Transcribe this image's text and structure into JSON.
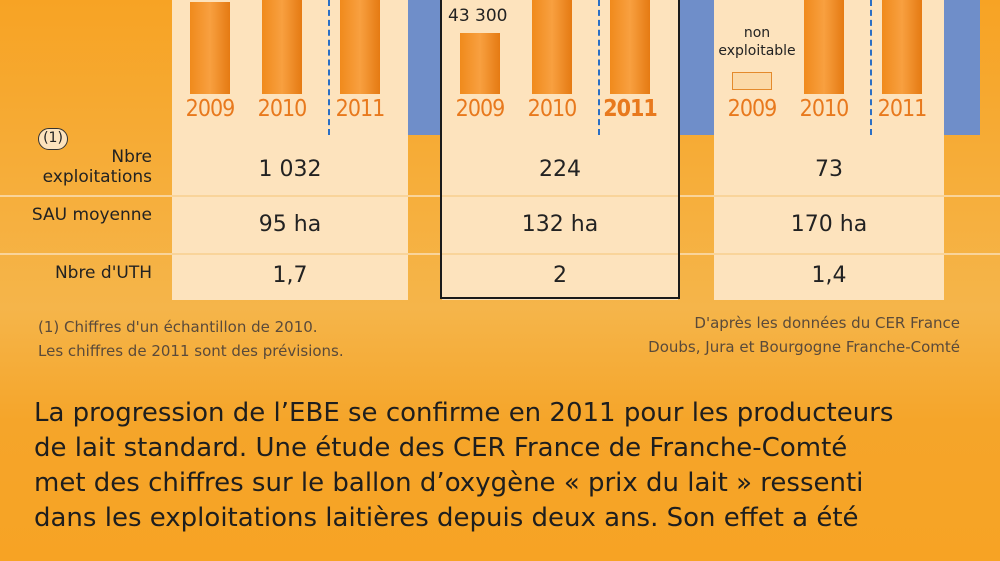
{
  "chart_data": {
    "type": "bar",
    "panels": [
      {
        "categories": [
          "2009",
          "2010",
          "2011"
        ],
        "bold_category": "",
        "values": [
          null,
          null,
          null
        ],
        "value_labels": [
          "",
          "",
          ""
        ],
        "not_available": []
      },
      {
        "categories": [
          "2009",
          "2010",
          "2011"
        ],
        "bold_category": "2011",
        "values": [
          43300,
          null,
          null
        ],
        "value_labels": [
          "43 300",
          "",
          ""
        ],
        "not_available": []
      },
      {
        "categories": [
          "2009",
          "2010",
          "2011"
        ],
        "bold_category": "",
        "values": [
          null,
          null,
          null
        ],
        "value_labels": [
          "",
          "",
          ""
        ],
        "not_available": [
          "2009"
        ],
        "not_available_label": "non exploitable"
      }
    ]
  },
  "table": {
    "footnote_marker": "(1)",
    "rows": [
      {
        "label": "Nbre exploitations",
        "values": [
          "1 032",
          "224",
          "73"
        ]
      },
      {
        "label": "SAU moyenne",
        "values": [
          "95 ha",
          "132 ha",
          "170 ha"
        ]
      },
      {
        "label": "Nbre d'UTH",
        "values": [
          "1,7",
          "2",
          "1,4"
        ]
      }
    ]
  },
  "notes": {
    "left_line1": "(1) Chiffres d'un échantillon de 2010.",
    "left_line2": "Les chiffres de 2011 sont des prévisions.",
    "right_line1": "D'après les données du CER France",
    "right_line2": "Doubs, Jura et Bourgogne Franche-Comté"
  },
  "body": {
    "line1": "La progression de l’EBE se confirme en 2011 pour les producteurs",
    "line2": "de lait standard. Une étude des CER France de Franche-Comté",
    "line3": "met des chiffres sur le ballon d’oxygène « prix du lait » ressenti",
    "line4": "dans les exploitations laitières depuis deux ans. Son effet a été"
  },
  "colors": {
    "orange": "#f7a324",
    "cream": "#fde3bd",
    "blue": "#6f8ec9",
    "bar": "#f08a1c",
    "year": "#e8791d"
  }
}
